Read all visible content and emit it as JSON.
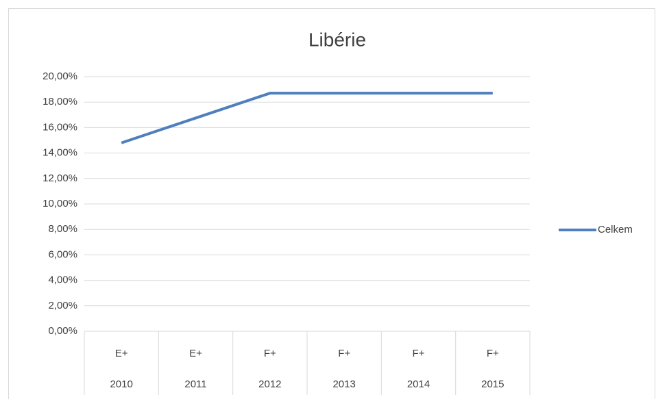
{
  "chart_data": {
    "type": "line",
    "title": "Libérie",
    "categories": [
      "E+",
      "E+",
      "F+",
      "F+",
      "F+",
      "F+"
    ],
    "years": [
      "2010",
      "2011",
      "2012",
      "2013",
      "2014",
      "2015"
    ],
    "series": [
      {
        "name": "Celkem",
        "color": "#4e7fbf",
        "values": [
          14.8,
          16.75,
          18.7,
          18.7,
          18.7,
          18.7
        ]
      }
    ],
    "ylim": [
      0,
      20
    ],
    "yticks": [
      {
        "value": 0,
        "label": "0,00%"
      },
      {
        "value": 2,
        "label": "2,00%"
      },
      {
        "value": 4,
        "label": "4,00%"
      },
      {
        "value": 6,
        "label": "6,00%"
      },
      {
        "value": 8,
        "label": "8,00%"
      },
      {
        "value": 10,
        "label": "10,00%"
      },
      {
        "value": 12,
        "label": "12,00%"
      },
      {
        "value": 14,
        "label": "14,00%"
      },
      {
        "value": 16,
        "label": "16,00%"
      },
      {
        "value": 18,
        "label": "18,00%"
      },
      {
        "value": 20,
        "label": "20,00%"
      }
    ],
    "grid": true,
    "legend": "right"
  }
}
